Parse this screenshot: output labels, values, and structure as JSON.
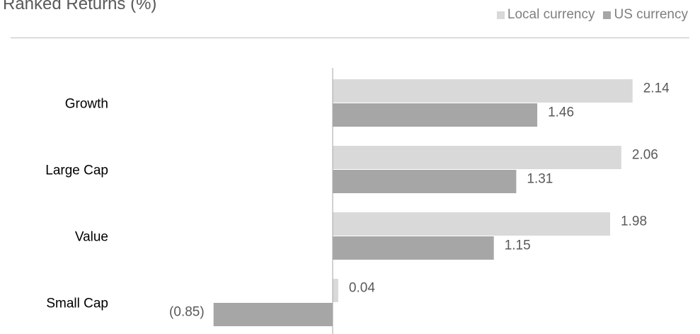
{
  "header": {
    "title": "Ranked Returns (%)"
  },
  "legend": [
    {
      "label": "Local currency",
      "color": "#d9d9d9"
    },
    {
      "label": "US currency",
      "color": "#a6a6a6"
    }
  ],
  "colors": {
    "local": "#d9d9d9",
    "us": "#a6a6a6",
    "negative_label": "#ff0000",
    "axis": "#a6a6a6"
  },
  "chart_data": {
    "type": "bar",
    "orientation": "horizontal",
    "title": "Ranked Returns (%)",
    "categories": [
      "Growth",
      "Large Cap",
      "Value",
      "Small Cap"
    ],
    "series": [
      {
        "name": "Local currency",
        "values": [
          2.14,
          2.06,
          1.98,
          0.04
        ],
        "labels": [
          "2.14",
          "2.06",
          "1.98",
          "0.04"
        ]
      },
      {
        "name": "US currency",
        "values": [
          1.46,
          1.31,
          1.15,
          -0.85
        ],
        "labels": [
          "1.46",
          "1.31",
          "1.15",
          "(0.85)"
        ]
      }
    ],
    "grid": false,
    "legend_position": "top-right"
  }
}
